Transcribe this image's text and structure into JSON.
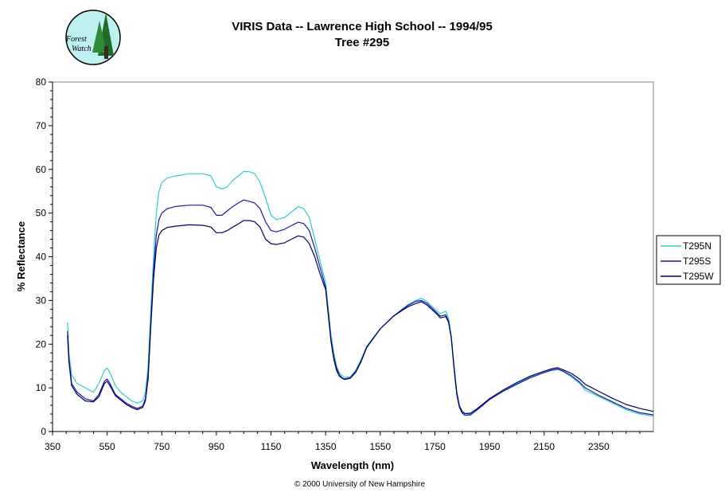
{
  "logo": {
    "text_line1": "Forest",
    "text_line2": "Watch"
  },
  "footer": {
    "copyright": "© 2000 University of New Hampshire"
  },
  "colors": {
    "T295N": "#33CCCC",
    "T295S": "#1A1AAA",
    "T295W": "#000066",
    "axis": "#000000"
  },
  "chart_data": {
    "type": "line",
    "title": "VIRIS Data -- Lawrence High School -- 1994/95",
    "subtitle": "Tree #295",
    "xlabel": "Wavelength (nm)",
    "ylabel": "% Reflectance",
    "xlim": [
      350,
      2550
    ],
    "ylim": [
      0,
      80
    ],
    "x_ticks": [
      350,
      550,
      750,
      950,
      1150,
      1350,
      1550,
      1750,
      1950,
      2150,
      2350
    ],
    "y_ticks": [
      0,
      10,
      20,
      30,
      40,
      50,
      60,
      70,
      80
    ],
    "grid": false,
    "legend_position": "right",
    "series": [
      {
        "name": "T295N",
        "x": [
          405,
          410,
          420,
          440,
          470,
          500,
          520,
          540,
          550,
          560,
          580,
          600,
          620,
          640,
          660,
          680,
          690,
          700,
          710,
          720,
          730,
          740,
          750,
          770,
          800,
          850,
          900,
          930,
          950,
          970,
          990,
          1010,
          1030,
          1050,
          1070,
          1090,
          1110,
          1130,
          1150,
          1170,
          1200,
          1230,
          1250,
          1270,
          1290,
          1310,
          1330,
          1350,
          1360,
          1370,
          1380,
          1390,
          1400,
          1410,
          1420,
          1440,
          1460,
          1480,
          1500,
          1550,
          1600,
          1650,
          1680,
          1700,
          1720,
          1750,
          1770,
          1790,
          1800,
          1810,
          1820,
          1830,
          1840,
          1850,
          1860,
          1880,
          1900,
          1920,
          1950,
          2000,
          2050,
          2100,
          2150,
          2180,
          2200,
          2220,
          2250,
          2280,
          2300,
          2350,
          2400,
          2450,
          2500,
          2550
        ],
        "values": [
          25,
          18,
          13,
          11,
          10,
          9,
          11,
          14,
          14.5,
          13.5,
          10.5,
          9,
          8,
          7,
          6.5,
          7,
          9,
          15,
          28,
          40,
          50,
          55,
          57,
          58,
          58.5,
          59,
          59,
          58.5,
          56,
          55.5,
          56,
          57.5,
          58.5,
          59.5,
          59.5,
          59,
          57,
          53.5,
          49.5,
          48.5,
          49,
          50.5,
          51.5,
          51,
          49,
          44,
          39,
          34,
          28,
          22,
          18,
          15,
          13.5,
          12.8,
          12.4,
          12.5,
          14,
          16.5,
          19.5,
          23.5,
          26.5,
          29,
          30,
          30.5,
          29.8,
          28,
          27,
          27.5,
          26,
          22,
          15,
          9,
          6,
          4.5,
          4,
          4,
          5,
          6,
          7.5,
          9.5,
          11,
          12.5,
          13.5,
          14,
          14.2,
          13.7,
          12.5,
          11,
          9.5,
          8,
          6.5,
          5,
          4,
          3.5
        ]
      },
      {
        "name": "T295S",
        "x": [
          405,
          410,
          420,
          440,
          470,
          500,
          520,
          540,
          550,
          560,
          580,
          600,
          620,
          640,
          660,
          680,
          690,
          700,
          710,
          720,
          730,
          740,
          750,
          770,
          800,
          850,
          900,
          930,
          950,
          970,
          990,
          1010,
          1030,
          1050,
          1070,
          1090,
          1110,
          1130,
          1150,
          1170,
          1200,
          1230,
          1250,
          1270,
          1290,
          1310,
          1330,
          1350,
          1360,
          1370,
          1380,
          1390,
          1400,
          1410,
          1420,
          1440,
          1460,
          1480,
          1500,
          1550,
          1600,
          1650,
          1680,
          1700,
          1720,
          1750,
          1770,
          1790,
          1800,
          1810,
          1820,
          1830,
          1840,
          1850,
          1860,
          1880,
          1900,
          1920,
          1950,
          2000,
          2050,
          2100,
          2150,
          2180,
          2200,
          2220,
          2250,
          2280,
          2300,
          2350,
          2400,
          2450,
          2500,
          2550
        ],
        "values": [
          23,
          16.5,
          11,
          9,
          7.5,
          7,
          8.5,
          11.5,
          12,
          11,
          8.5,
          7.5,
          6.5,
          5.8,
          5.3,
          5.8,
          7.5,
          13,
          25,
          37,
          45,
          48.5,
          50,
          51,
          51.5,
          51.8,
          51.8,
          51.3,
          49.5,
          49.5,
          50.5,
          51.5,
          52.3,
          53,
          52.7,
          52.3,
          51,
          48,
          46,
          45.7,
          46.3,
          47.3,
          47.9,
          47.6,
          46,
          42,
          37.5,
          33,
          27,
          21,
          17,
          14.5,
          13,
          12.3,
          12,
          12.3,
          13.7,
          16.2,
          19.3,
          23.5,
          26.5,
          28.8,
          29.8,
          30,
          29.4,
          27.6,
          26.4,
          26.7,
          25.3,
          21.5,
          14.5,
          8.5,
          5.5,
          4.2,
          3.7,
          3.8,
          4.7,
          5.7,
          7.3,
          9.2,
          10.8,
          12.3,
          13.5,
          14.1,
          14.3,
          13.8,
          12.8,
          11.3,
          10,
          8.3,
          6.8,
          5.3,
          4.3,
          3.8
        ]
      },
      {
        "name": "T295W",
        "x": [
          405,
          410,
          420,
          440,
          470,
          500,
          520,
          540,
          550,
          560,
          580,
          600,
          620,
          640,
          660,
          680,
          690,
          700,
          710,
          720,
          730,
          740,
          750,
          770,
          800,
          850,
          900,
          930,
          950,
          970,
          990,
          1010,
          1030,
          1050,
          1070,
          1090,
          1110,
          1130,
          1150,
          1170,
          1200,
          1230,
          1250,
          1270,
          1290,
          1310,
          1330,
          1350,
          1360,
          1370,
          1380,
          1390,
          1400,
          1410,
          1420,
          1440,
          1460,
          1480,
          1500,
          1550,
          1600,
          1650,
          1680,
          1700,
          1720,
          1750,
          1770,
          1790,
          1800,
          1810,
          1820,
          1830,
          1840,
          1850,
          1860,
          1880,
          1900,
          1920,
          1950,
          2000,
          2050,
          2100,
          2150,
          2180,
          2200,
          2220,
          2250,
          2280,
          2300,
          2350,
          2400,
          2450,
          2500,
          2550
        ],
        "values": [
          22,
          16,
          10.5,
          8.5,
          7,
          6.8,
          8,
          11,
          11.5,
          10.5,
          8.2,
          7.2,
          6.2,
          5.5,
          5,
          5.5,
          7,
          12,
          24,
          35,
          42,
          45,
          46,
          46.7,
          47,
          47.3,
          47.2,
          46.8,
          45.5,
          45.5,
          46,
          46.8,
          47.5,
          48.3,
          48.3,
          48,
          46.8,
          44,
          43,
          42.8,
          43.2,
          44.2,
          44.8,
          44.5,
          43,
          40,
          36,
          32.5,
          26.5,
          20.5,
          16.5,
          14,
          12.7,
          12.2,
          11.9,
          12.2,
          13.5,
          16,
          19.2,
          23.5,
          26.5,
          28.5,
          29.3,
          29.7,
          29,
          27.3,
          26,
          26.3,
          25,
          21.5,
          14.8,
          9,
          5.8,
          4.6,
          4.1,
          4.2,
          5,
          6,
          7.5,
          9.5,
          11.2,
          12.7,
          13.8,
          14.4,
          14.6,
          14.1,
          13.3,
          12,
          10.8,
          9.2,
          7.6,
          6.2,
          5.3,
          4.6
        ]
      }
    ]
  }
}
